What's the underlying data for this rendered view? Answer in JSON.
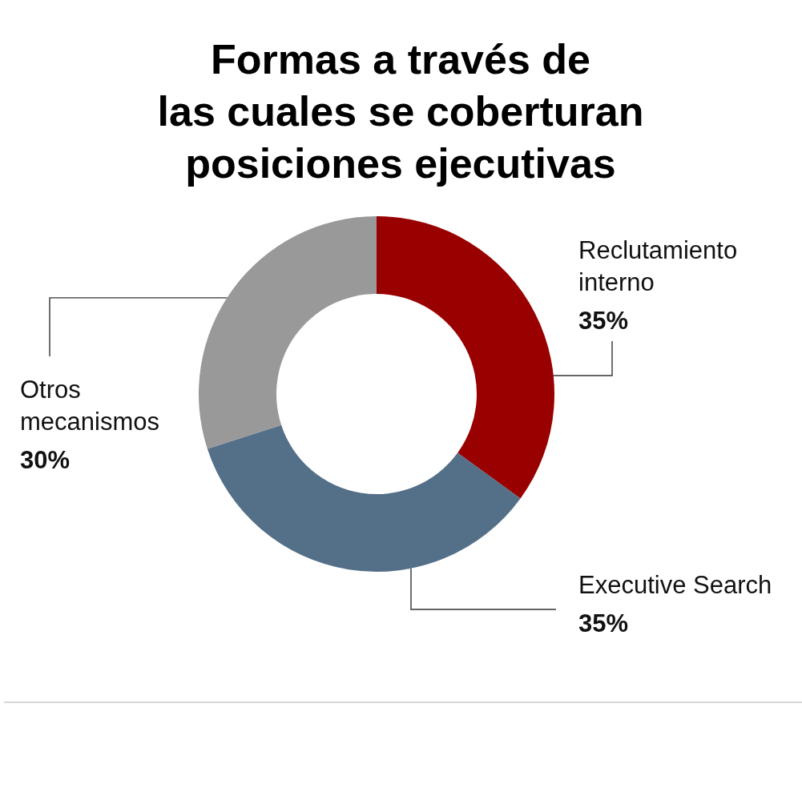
{
  "chart_data": {
    "type": "donut",
    "title": "Formas a través de las cuales se coberturan posiciones ejecutivas",
    "categories": [
      "Reclutamiento interno",
      "Executive Search",
      "Otros mecanismos"
    ],
    "values": [
      35,
      35,
      30
    ],
    "colors": [
      "#990000",
      "#546f88",
      "#999999"
    ],
    "value_labels": [
      "35%",
      "35%",
      "30%"
    ]
  }
}
